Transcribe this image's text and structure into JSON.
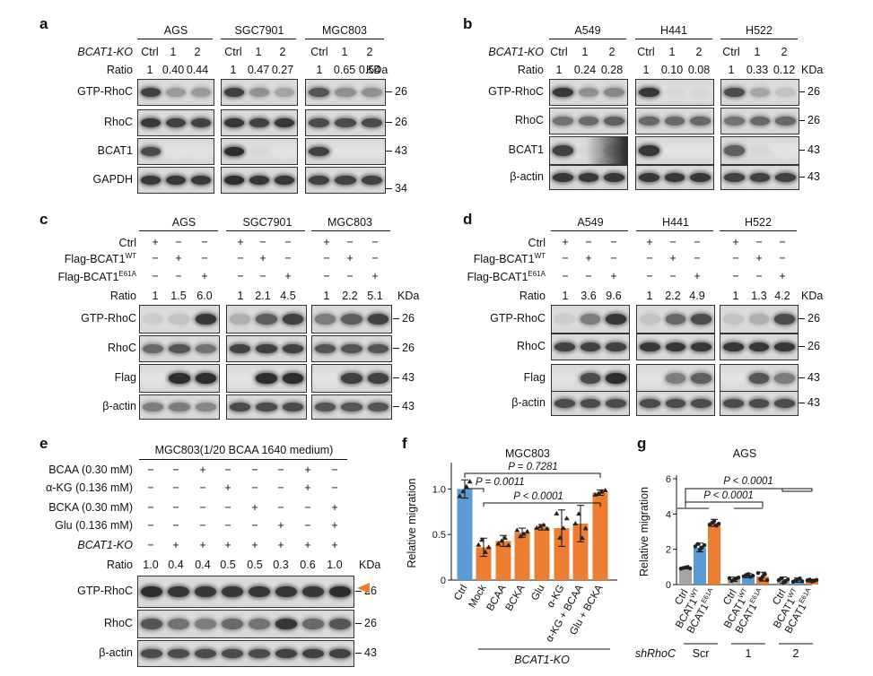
{
  "panel_letters": [
    "a",
    "b",
    "c",
    "d",
    "e",
    "f",
    "g"
  ],
  "panels": {
    "a": {
      "cell_lines": [
        "AGS",
        "SGC7901",
        "MGC803"
      ],
      "ko_label": "BCAT1-KO",
      "lane_labels": [
        "Ctrl",
        "1",
        "2",
        "Ctrl",
        "1",
        "2",
        "Ctrl",
        "1",
        "2"
      ],
      "ratio_label": "Ratio",
      "ratios": [
        "1",
        "0.40",
        "0.44",
        "1",
        "0.47",
        "0.27",
        "1",
        "0.65",
        "0.54"
      ],
      "kda_label": "KDa",
      "blots": [
        {
          "name": "GTP-RhoC",
          "kda": "26"
        },
        {
          "name": "RhoC",
          "kda": "26"
        },
        {
          "name": "BCAT1",
          "kda": "43"
        },
        {
          "name": "GAPDH",
          "kda": "34"
        }
      ]
    },
    "b": {
      "cell_lines": [
        "A549",
        "H441",
        "H522"
      ],
      "ko_label": "BCAT1-KO",
      "lane_labels": [
        "Ctrl",
        "1",
        "2",
        "Ctrl",
        "1",
        "2",
        "Ctrl",
        "1",
        "2"
      ],
      "ratio_label": "Ratio",
      "ratios": [
        "1",
        "0.24",
        "0.28",
        "1",
        "0.10",
        "0.08",
        "1",
        "0.33",
        "0.12"
      ],
      "kda_label": "KDa",
      "blots": [
        {
          "name": "GTP-RhoC",
          "kda": "26"
        },
        {
          "name": "RhoC",
          "kda": "26"
        },
        {
          "name": "BCAT1",
          "kda": "43"
        },
        {
          "name": "β-actin",
          "kda": "43"
        }
      ]
    },
    "c": {
      "cell_lines": [
        "AGS",
        "SGC7901",
        "MGC803"
      ],
      "conditions": [
        "Ctrl",
        "Flag-BCAT1",
        "Flag-BCAT1"
      ],
      "condition_sups": [
        "",
        "WT",
        "E61A"
      ],
      "signs": [
        [
          "+",
          "−",
          "−",
          "+",
          "−",
          "−",
          "+",
          "−",
          "−"
        ],
        [
          "−",
          "+",
          "−",
          "−",
          "+",
          "−",
          "−",
          "+",
          "−"
        ],
        [
          "−",
          "−",
          "+",
          "−",
          "−",
          "+",
          "−",
          "−",
          "+"
        ]
      ],
      "ratio_label": "Ratio",
      "ratios": [
        "1",
        "1.5",
        "6.0",
        "1",
        "2.1",
        "4.5",
        "1",
        "2.2",
        "5.1"
      ],
      "kda_label": "KDa",
      "blots": [
        {
          "name": "GTP-RhoC",
          "kda": "26"
        },
        {
          "name": "RhoC",
          "kda": "26"
        },
        {
          "name": "Flag",
          "kda": "43"
        },
        {
          "name": "β-actin",
          "kda": "43"
        }
      ]
    },
    "d": {
      "cell_lines": [
        "A549",
        "H441",
        "H522"
      ],
      "conditions": [
        "Ctrl",
        "Flag-BCAT1",
        "Flag-BCAT1"
      ],
      "condition_sups": [
        "",
        "WT",
        "E61A"
      ],
      "signs": [
        [
          "+",
          "−",
          "−",
          "+",
          "−",
          "−",
          "+",
          "−",
          "−"
        ],
        [
          "−",
          "+",
          "−",
          "−",
          "+",
          "−",
          "−",
          "+",
          "−"
        ],
        [
          "−",
          "−",
          "+",
          "−",
          "−",
          "+",
          "−",
          "−",
          "+"
        ]
      ],
      "ratio_label": "Ratio",
      "ratios": [
        "1",
        "3.6",
        "9.6",
        "1",
        "2.2",
        "4.9",
        "1",
        "1.3",
        "4.2"
      ],
      "kda_label": "KDa",
      "blots": [
        {
          "name": "GTP-RhoC",
          "kda": "26"
        },
        {
          "name": "RhoC",
          "kda": "26"
        },
        {
          "name": "Flag",
          "kda": "43"
        },
        {
          "name": "β-actin",
          "kda": "43"
        }
      ]
    },
    "e": {
      "title": "MGC803(1/20 BCAA 1640 medium)",
      "conditions": [
        "BCAA (0.30 mM)",
        "α-KG (0.136 mM)",
        "BCKA (0.30 mM)",
        "Glu (0.136 mM)",
        "BCAT1-KO"
      ],
      "signs": [
        [
          "−",
          "−",
          "+",
          "−",
          "−",
          "−",
          "+",
          "−"
        ],
        [
          "−",
          "−",
          "−",
          "+",
          "−",
          "−",
          "+",
          "−"
        ],
        [
          "−",
          "−",
          "−",
          "−",
          "+",
          "−",
          "−",
          "+"
        ],
        [
          "−",
          "−",
          "−",
          "−",
          "−",
          "+",
          "−",
          "+"
        ],
        [
          "−",
          "+",
          "+",
          "+",
          "+",
          "+",
          "+",
          "+"
        ]
      ],
      "ratio_label": "Ratio",
      "ratios": [
        "1.0",
        "0.4",
        "0.4",
        "0.5",
        "0.5",
        "0.3",
        "0.6",
        "1.0"
      ],
      "kda_label": "KDa",
      "blots": [
        {
          "name": "GTP-RhoC",
          "kda": "26"
        },
        {
          "name": "RhoC",
          "kda": "26"
        },
        {
          "name": "β-actin",
          "kda": "43"
        }
      ]
    }
  },
  "chart_data": [
    {
      "type": "bar",
      "panel": "f",
      "title": "MGC803",
      "ylabel": "Relative migration",
      "ylim": [
        0,
        1.25
      ],
      "yticks": [
        "0",
        "0.5",
        "1.0"
      ],
      "categories": [
        "Ctrl",
        "Mock",
        "BCAA",
        "BCKA",
        "Glu",
        "α-KG",
        "α-KG + BCAA",
        "Glu + BCKA"
      ],
      "values": [
        1.0,
        0.36,
        0.43,
        0.52,
        0.58,
        0.57,
        0.62,
        0.96
      ],
      "errors": [
        0.1,
        0.1,
        0.06,
        0.05,
        0.03,
        0.2,
        0.2,
        0.03
      ],
      "colors": [
        "#5b9bd5",
        "#ed7d31",
        "#ed7d31",
        "#ed7d31",
        "#ed7d31",
        "#ed7d31",
        "#ed7d31",
        "#ed7d31"
      ],
      "group_label": "BCAT1-KO",
      "stats": [
        "P = 0.7281",
        "P = 0.0011",
        "P < 0.0001"
      ]
    },
    {
      "type": "bar",
      "panel": "g",
      "title": "AGS",
      "ylabel": "Relative migration",
      "ylim": [
        0,
        6
      ],
      "yticks": [
        "0",
        "2",
        "4",
        "6"
      ],
      "categories": [
        "Ctrl",
        "BCAT1",
        "BCAT1",
        "Ctrl",
        "BCAT1",
        "BCAT1",
        "Ctrl",
        "BCAT1",
        "BCAT1"
      ],
      "category_sups": [
        "",
        "WT",
        "E61A",
        "",
        "WT",
        "E61A",
        "",
        "WT",
        "E61A"
      ],
      "values": [
        0.95,
        2.1,
        3.5,
        0.3,
        0.5,
        0.45,
        0.25,
        0.25,
        0.22
      ],
      "errors": [
        0.06,
        0.25,
        0.2,
        0.12,
        0.12,
        0.25,
        0.18,
        0.12,
        0.08
      ],
      "colors": [
        "#a5a5a5",
        "#5b9bd5",
        "#ed7d31",
        "#a5a5a5",
        "#5b9bd5",
        "#ed7d31",
        "#a5a5a5",
        "#5b9bd5",
        "#ed7d31"
      ],
      "group_axis_label": "shRhoC",
      "groups": [
        "Scr",
        "1",
        "2"
      ],
      "stats": [
        "P < 0.0001",
        "P < 0.0001"
      ]
    }
  ]
}
